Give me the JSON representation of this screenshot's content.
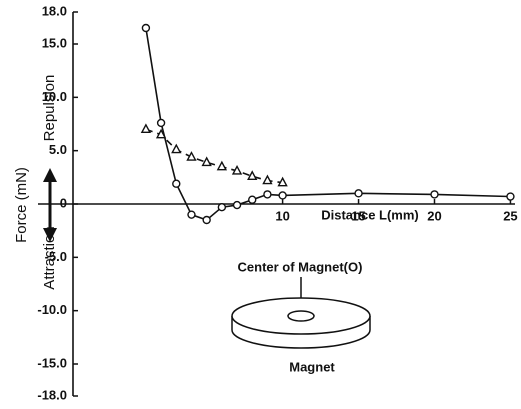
{
  "chart_data": {
    "type": "line",
    "y_label": "Force (mN)",
    "y_label_upper": "Repulsion",
    "y_label_lower": "Attraction",
    "x_label": "Distance L(mm)",
    "annotation": "Center of Magnet(O)",
    "magnet_label": "Magnet",
    "xlim": [
      -3.8,
      25.3
    ],
    "xticks": [
      10,
      15,
      20,
      25
    ],
    "ylim": [
      -18,
      18
    ],
    "yticks": [
      {
        "value": 18,
        "label": "18.0"
      },
      {
        "value": 15,
        "label": "15.0"
      },
      {
        "value": 10,
        "label": "10.0"
      },
      {
        "value": 5,
        "label": "5.0"
      },
      0,
      {
        "value": -5,
        "label": "-5.0"
      },
      {
        "value": -10,
        "label": "-10.0"
      },
      {
        "value": -15,
        "label": "-15.0"
      },
      {
        "value": -18,
        "label": "-18.0"
      }
    ],
    "grid": false,
    "series": [
      {
        "marker": "circle",
        "dash": false,
        "color": "#111111",
        "x": [
          1,
          2,
          3,
          4,
          5,
          6,
          7,
          8,
          9,
          10,
          15,
          20,
          25
        ],
        "values": [
          16.5,
          7.6,
          1.9,
          -1.0,
          -1.5,
          -0.3,
          -0.1,
          0.4,
          0.9,
          0.8,
          1.0,
          0.9,
          0.7
        ]
      },
      {
        "marker": "triangle",
        "dash": true,
        "color": "#111111",
        "x": [
          1,
          2,
          3,
          4,
          5,
          6,
          7,
          8,
          9,
          10
        ],
        "values": [
          7.0,
          6.5,
          5.1,
          4.4,
          3.9,
          3.5,
          3.1,
          2.6,
          2.2,
          2.0
        ]
      }
    ]
  }
}
